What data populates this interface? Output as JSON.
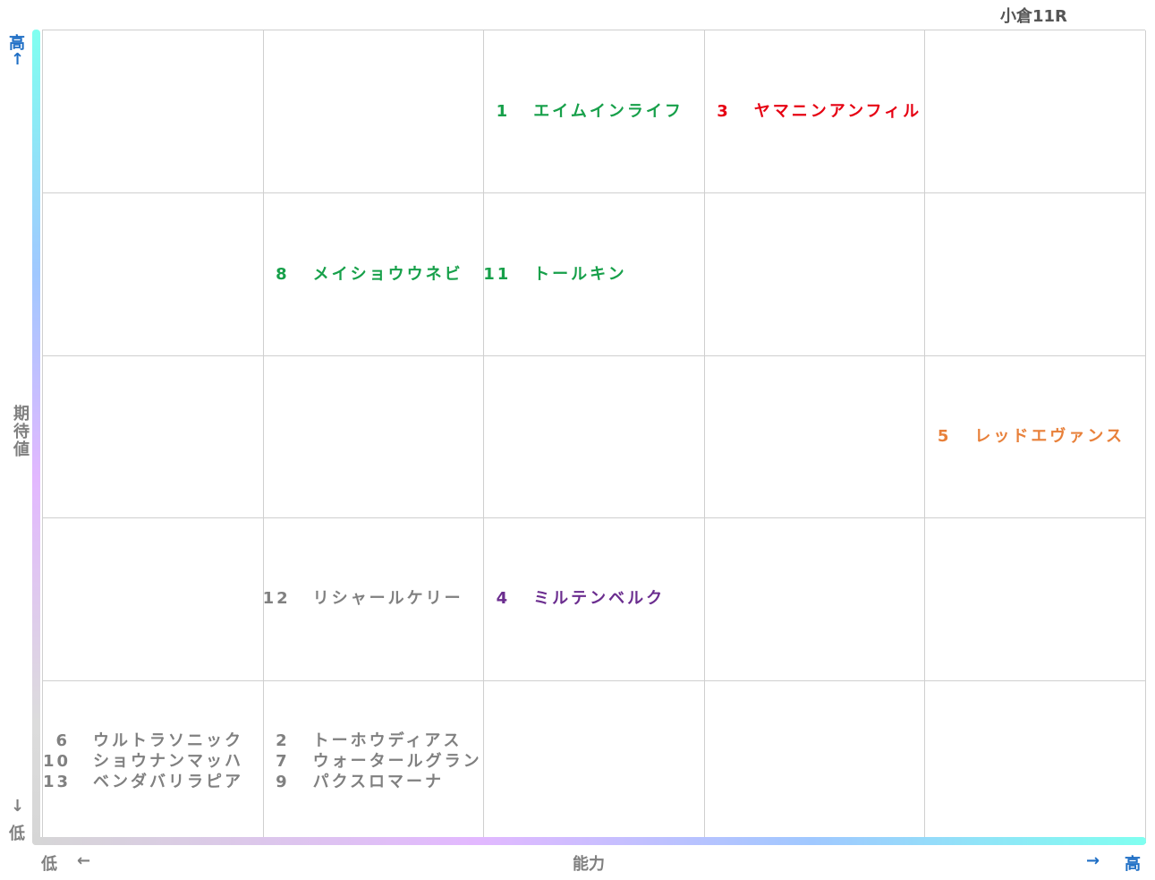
{
  "title": "小倉11R",
  "y_axis": {
    "high": "高",
    "high_arrow": "↑",
    "label": "期待値",
    "low_arrow": "↓",
    "low": "低"
  },
  "x_axis": {
    "low": "低",
    "low_arrow": "←",
    "label": "能力",
    "high_arrow": "→",
    "high": "高"
  },
  "grid": [
    [
      [],
      [],
      [
        {
          "number": "1",
          "name": "エイムインライフ",
          "color": "#17a04a"
        }
      ],
      [
        {
          "number": "3",
          "name": "ヤマニンアンフィル",
          "color": "#e60012"
        }
      ],
      []
    ],
    [
      [],
      [
        {
          "number": "8",
          "name": "メイショウウネビ",
          "color": "#17a04a"
        }
      ],
      [
        {
          "number": "11",
          "name": "トールキン",
          "color": "#17a04a"
        }
      ],
      [],
      []
    ],
    [
      [],
      [],
      [],
      [],
      [
        {
          "number": "5",
          "name": "レッドエヴァンス",
          "color": "#e8803a"
        }
      ]
    ],
    [
      [],
      [
        {
          "number": "12",
          "name": "リシャールケリー",
          "color": "#808080"
        }
      ],
      [
        {
          "number": "4",
          "name": "ミルテンベルク",
          "color": "#6b2d8f"
        }
      ],
      [],
      []
    ],
    [
      [
        {
          "number": "6",
          "name": "ウルトラソニック",
          "color": "#808080"
        },
        {
          "number": "10",
          "name": "ショウナンマッハ",
          "color": "#808080"
        },
        {
          "number": "13",
          "name": "ベンダバリラピア",
          "color": "#808080"
        }
      ],
      [
        {
          "number": "2",
          "name": "トーホウディアス",
          "color": "#808080"
        },
        {
          "number": "7",
          "name": "ウォータールグラン",
          "color": "#808080"
        },
        {
          "number": "9",
          "name": "パクスロマーナ",
          "color": "#808080"
        }
      ],
      [],
      [],
      []
    ]
  ]
}
